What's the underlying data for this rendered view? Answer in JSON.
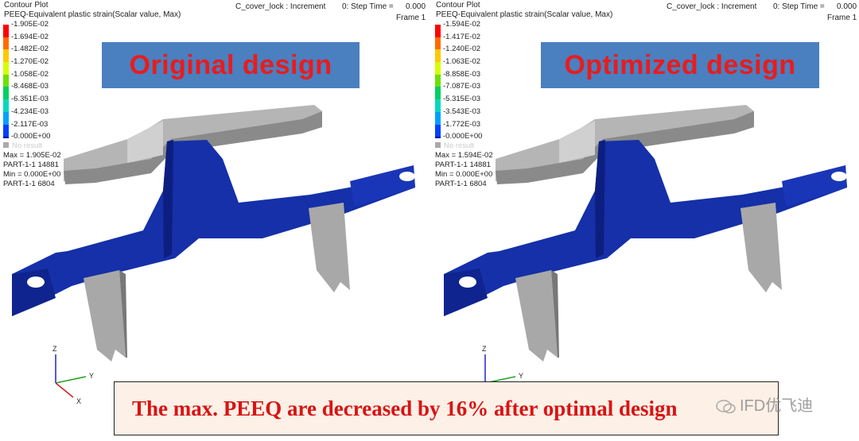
{
  "colors": {
    "legend": [
      "#ff0000",
      "#ff6a00",
      "#ffc800",
      "#d4ff00",
      "#6ee000",
      "#00d060",
      "#00d8c0",
      "#00a0ff",
      "#0040ff",
      "#0000b0"
    ],
    "banner_bg": "#4a7fc0",
    "banner_text": "#e81c1c",
    "part_blue": "#1530a8",
    "part_grey": "#9a9a9a",
    "caption_bg": "#fdf0e6",
    "caption_text": "#d81414"
  },
  "left": {
    "title": "Contour Plot",
    "subtitle": "PEEQ-Equivalent plastic strain(Scalar value, Max)",
    "loadcase": "C_cover_lock : Increment",
    "step": "0: Step Time =",
    "step_value": "0.000",
    "frame": "Frame 1",
    "legend": [
      "1.905E-02",
      "1.694E-02",
      "1.482E-02",
      "1.270E-02",
      "1.058E-02",
      "8.468E-03",
      "6.351E-03",
      "4.234E-03",
      "2.117E-03",
      "0.000E+00"
    ],
    "no_result": "No result",
    "max": "Max = 1.905E-02",
    "max_loc": "PART-1-1 14881",
    "min": "Min = 0.000E+00",
    "min_loc": "PART-1-1 6804",
    "banner": "Original design"
  },
  "right": {
    "title": "Contour Plot",
    "subtitle": "PEEQ-Equivalent plastic strain(Scalar value, Max)",
    "loadcase": "C_cover_lock : Increment",
    "step": "0: Step Time =",
    "step_value": "0.000",
    "frame": "Frame 1",
    "legend": [
      "1.594E-02",
      "1.417E-02",
      "1.240E-02",
      "1.063E-02",
      "8.858E-03",
      "7.087E-03",
      "5.315E-03",
      "3.543E-03",
      "1.772E-03",
      "0.000E+00"
    ],
    "no_result": "No result",
    "max": "Max = 1.594E-02",
    "max_loc": "PART-1-1 14881",
    "min": "Min = 0.000E+00",
    "min_loc": "PART-1-1 6804",
    "banner": "Optimized design"
  },
  "axes": {
    "z": "Z",
    "y": "Y",
    "x": "X"
  },
  "caption": "The max. PEEQ are decreased by 16% after optimal design",
  "watermark": "IFD优飞迪"
}
